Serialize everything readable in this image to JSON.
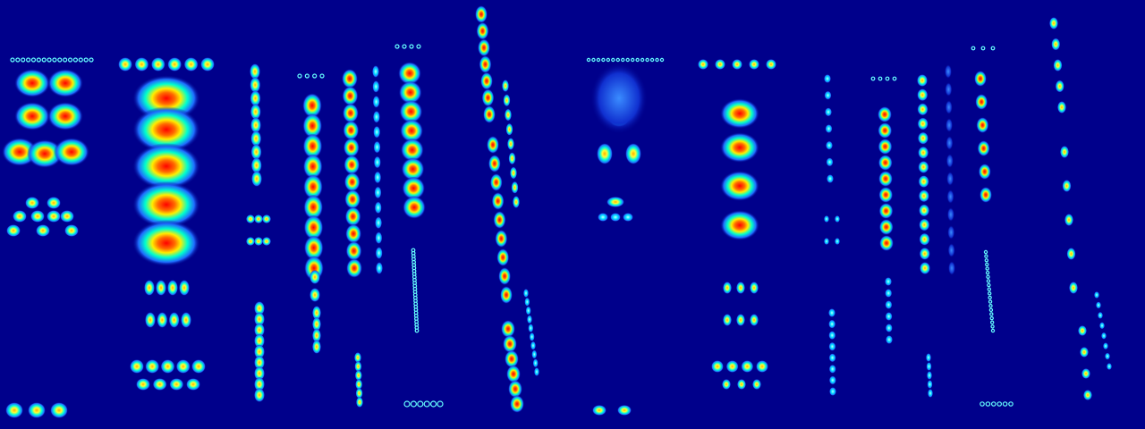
{
  "image": {
    "kind": "heatmap",
    "colormap": "jet",
    "background_color": "#00008b",
    "panels": [
      "left-heatmap-panel",
      "right-heatmap-panel"
    ],
    "palette": {
      "low": "#00008b",
      "cyan": "#00ffff",
      "yellow": "#ffff00",
      "orange": "#ff8000",
      "high": "#ff0000"
    }
  }
}
